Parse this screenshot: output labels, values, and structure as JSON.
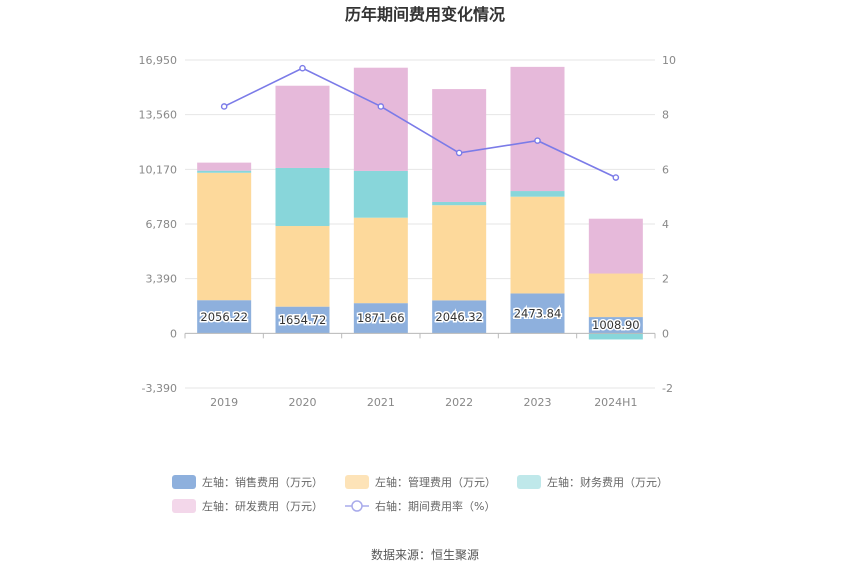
{
  "chart_data": {
    "type": "bar",
    "title": "历年期间费用变化情况",
    "source": "数据来源：恒生聚源",
    "categories": [
      "2019",
      "2020",
      "2021",
      "2022",
      "2023",
      "2024H1"
    ],
    "left_axis": {
      "min": -3390,
      "max": 16950,
      "ticks": [
        16950,
        13560,
        10170,
        6780,
        3390,
        0,
        -3390
      ],
      "tick_labels": [
        "16,950",
        "13,560",
        "10,170",
        "6,780",
        "3,390",
        "0",
        "-3,390"
      ]
    },
    "right_axis": {
      "min": -2,
      "max": 10,
      "ticks": [
        10,
        8,
        6,
        4,
        2,
        0,
        -2
      ],
      "tick_labels": [
        "10",
        "8",
        "6",
        "4",
        "2",
        "0",
        "-2"
      ]
    },
    "series": [
      {
        "name": "左轴：销售费用（万元）",
        "type": "bar",
        "color": "#8eb0dd",
        "values": [
          2056.22,
          1654.72,
          1871.66,
          2046.32,
          2473.84,
          1008.9
        ]
      },
      {
        "name": "左轴：管理费用（万元）",
        "type": "bar",
        "color": "#fdd99b",
        "values": [
          7900,
          5000,
          5300,
          5900,
          6000,
          2700
        ]
      },
      {
        "name": "左轴：财务费用（万元）",
        "type": "bar",
        "color": "#88d6da",
        "values": [
          130,
          3600,
          2900,
          200,
          350,
          -380
        ]
      },
      {
        "name": "左轴：研发费用（万元）",
        "type": "bar",
        "color": "#e6b9da",
        "values": [
          500,
          5100,
          6400,
          7000,
          7700,
          3400
        ]
      },
      {
        "name": "右轴：期间费用率（%）",
        "type": "line",
        "color": "#7b7be8",
        "values": [
          8.3,
          9.7,
          8.3,
          6.6,
          7.05,
          5.7
        ]
      }
    ],
    "data_labels": [
      "2056.22",
      "1654.72",
      "1871.66",
      "2046.32",
      "2473.84",
      "1008.90"
    ],
    "legend": {
      "items": [
        "左轴：销售费用（万元）",
        "左轴：管理费用（万元）",
        "左轴：财务费用（万元）",
        "左轴：研发费用（万元）",
        "右轴：期间费用率（%）"
      ],
      "colors": [
        "#8eb0dd",
        "#fde3b8",
        "#bfe8ea",
        "#f3d7ea",
        "#a9abeb"
      ]
    }
  }
}
